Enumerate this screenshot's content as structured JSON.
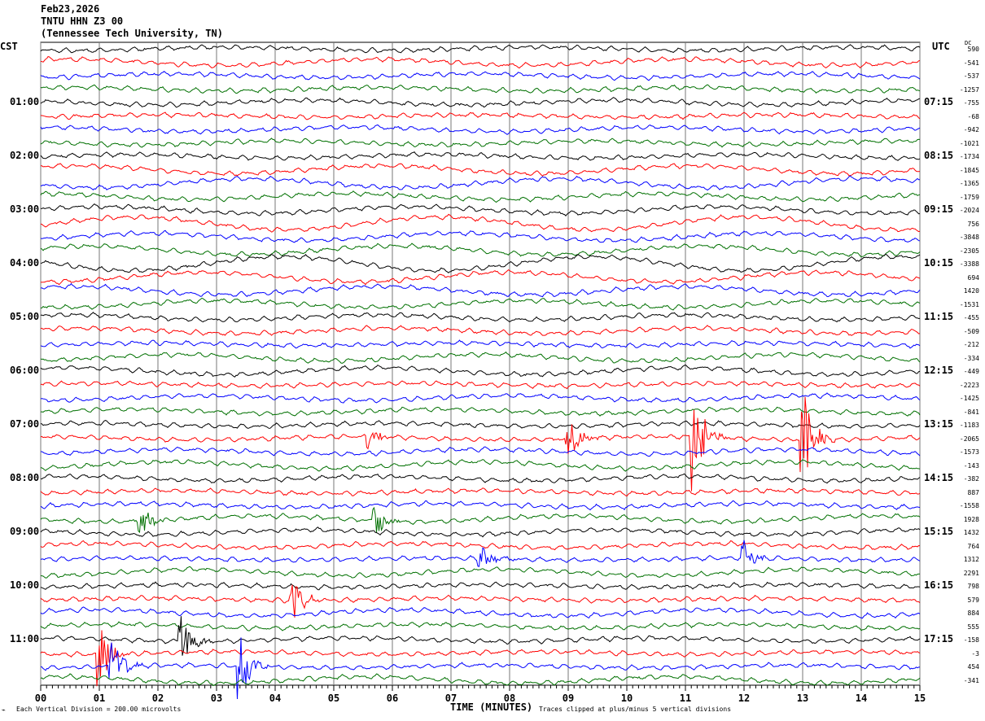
{
  "header": {
    "date": "Feb23,2026",
    "station": "TNTU HHN Z3 00",
    "location": "(Tennessee Tech University, TN)"
  },
  "left_axis_title": "CST",
  "right_axis_title": "UTC",
  "dc_title": "DC",
  "footer": {
    "scale": "Each Vertical Division =  200.00 microvolts",
    "xlabel": "TIME (MINUTES)",
    "clip_note": "Traces clipped at plus/minus 5 vertical divisions"
  },
  "chart_data": {
    "type": "line",
    "title": "TNTU HHN Z3 00 helicorder",
    "xlabel": "TIME (MINUTES)",
    "xlim": [
      0,
      15
    ],
    "x_ticks": [
      "00",
      "01",
      "02",
      "03",
      "04",
      "05",
      "06",
      "07",
      "08",
      "09",
      "10",
      "11",
      "12",
      "13",
      "14",
      "15"
    ],
    "trace_colors": [
      "#000000",
      "#ff0000",
      "#0000ff",
      "#007000"
    ],
    "cst_labels": [
      "01:00",
      "02:00",
      "03:00",
      "04:00",
      "05:00",
      "06:00",
      "07:00",
      "08:00",
      "09:00",
      "10:00",
      "11:00"
    ],
    "utc_labels": [
      "07:15",
      "08:15",
      "09:15",
      "10:15",
      "11:15",
      "12:15",
      "13:15",
      "14:15",
      "15:15",
      "16:15",
      "17:15"
    ],
    "dc_offsets": [
      590,
      -541,
      -537,
      -1257,
      -755,
      -68,
      -942,
      -1021,
      -1734,
      -1845,
      -1365,
      -1759,
      -2024,
      756,
      -3848,
      -2305,
      -3388,
      694,
      1420,
      -1531,
      -455,
      -509,
      -212,
      -334,
      -449,
      -2223,
      -1425,
      -841,
      -1183,
      -2065,
      -1573,
      -143,
      -382,
      887,
      -1558,
      1928,
      1432,
      764,
      1312,
      2291,
      798,
      579,
      884,
      555,
      -158,
      -3,
      454,
      -341
    ],
    "events": [
      {
        "trace": 29,
        "minute": 11.1,
        "amplitude": 5
      },
      {
        "trace": 29,
        "minute": 13.0,
        "amplitude": 5
      },
      {
        "trace": 29,
        "minute": 5.6,
        "amplitude": 1
      },
      {
        "trace": 29,
        "minute": 9.0,
        "amplitude": 1.5
      },
      {
        "trace": 35,
        "minute": 1.7,
        "amplitude": 1.3
      },
      {
        "trace": 35,
        "minute": 5.7,
        "amplitude": 1.3
      },
      {
        "trace": 38,
        "minute": 12.0,
        "amplitude": 1.2
      },
      {
        "trace": 38,
        "minute": 7.5,
        "amplitude": 1
      },
      {
        "trace": 41,
        "minute": 4.3,
        "amplitude": 2.2
      },
      {
        "trace": 44,
        "minute": 2.4,
        "amplitude": 2
      },
      {
        "trace": 45,
        "minute": 1.0,
        "amplitude": 2.5
      },
      {
        "trace": 46,
        "minute": 1.2,
        "amplitude": 2.5
      },
      {
        "trace": 46,
        "minute": 3.4,
        "amplitude": 2.5
      }
    ]
  }
}
